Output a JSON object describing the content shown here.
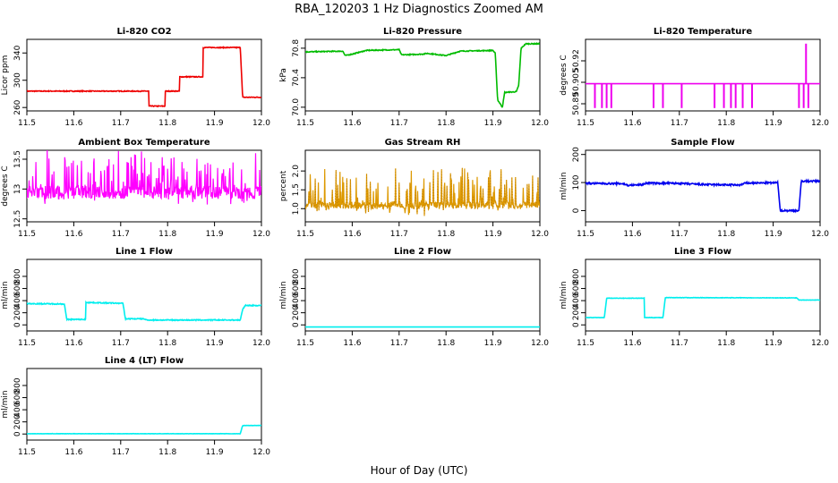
{
  "figure": {
    "title": "RBA_120203  1 Hz Diagnostics Zoomed AM",
    "xlabel": "Hour of Day (UTC)"
  },
  "chart_data": [
    {
      "id": "co2",
      "type": "line",
      "title": "Li-820 CO2",
      "ylabel": "Licor ppm",
      "color": "#ee0000",
      "xlim": [
        11.5,
        12.0
      ],
      "xticks": [
        11.5,
        11.6,
        11.7,
        11.8,
        11.9,
        12.0
      ],
      "xtick_labels": [
        "11.5",
        "11.6",
        "11.7",
        "11.8",
        "11.9",
        "12.0"
      ],
      "ylim": [
        255,
        360
      ],
      "yticks": [
        260,
        300,
        340
      ],
      "ytick_labels": [
        "260",
        "300",
        "340"
      ],
      "noise": 0.6,
      "steps": [
        [
          11.5,
          284
        ],
        [
          11.76,
          284
        ],
        [
          11.76,
          262
        ],
        [
          11.795,
          262
        ],
        [
          11.795,
          284
        ],
        [
          11.825,
          284
        ],
        [
          11.825,
          305
        ],
        [
          11.875,
          305
        ],
        [
          11.875,
          348
        ],
        [
          11.955,
          348
        ],
        [
          11.96,
          275
        ],
        [
          12.0,
          275
        ]
      ]
    },
    {
      "id": "pressure",
      "type": "line",
      "title": "Li-820 Pressure",
      "ylabel": "kPa",
      "color": "#00bb00",
      "xlim": [
        11.5,
        12.0
      ],
      "xticks": [
        11.5,
        11.6,
        11.7,
        11.8,
        11.9,
        12.0
      ],
      "xtick_labels": [
        "11.5",
        "11.6",
        "11.7",
        "11.8",
        "11.9",
        "12.0"
      ],
      "ylim": [
        69.95,
        70.92
      ],
      "yticks": [
        70.0,
        70.4,
        70.8
      ],
      "ytick_labels": [
        "70.0",
        "70.4",
        "70.8"
      ],
      "noise": 0.006,
      "steps": [
        [
          11.5,
          70.75
        ],
        [
          11.58,
          70.76
        ],
        [
          11.585,
          70.7
        ],
        [
          11.6,
          70.72
        ],
        [
          11.63,
          70.77
        ],
        [
          11.7,
          70.78
        ],
        [
          11.705,
          70.71
        ],
        [
          11.75,
          70.72
        ],
        [
          11.76,
          70.73
        ],
        [
          11.8,
          70.7
        ],
        [
          11.83,
          70.76
        ],
        [
          11.9,
          70.77
        ],
        [
          11.905,
          70.73
        ],
        [
          11.91,
          70.1
        ],
        [
          11.92,
          70.0
        ],
        [
          11.925,
          70.2
        ],
        [
          11.95,
          70.21
        ],
        [
          11.955,
          70.3
        ],
        [
          11.96,
          70.8
        ],
        [
          11.97,
          70.86
        ],
        [
          12.0,
          70.86
        ]
      ]
    },
    {
      "id": "licor_temp",
      "type": "line",
      "title": "Li-820 Temperature",
      "ylabel": "degrees C",
      "color": "#ee00ee",
      "xlim": [
        11.5,
        12.0
      ],
      "xticks": [
        11.5,
        11.6,
        11.7,
        11.8,
        11.9,
        12.0
      ],
      "xtick_labels": [
        "11.5",
        "11.6",
        "11.7",
        "11.8",
        "11.9",
        "12.0"
      ],
      "ylim": [
        50.885,
        50.935
      ],
      "yticks": [
        50.89,
        50.905,
        50.92
      ],
      "ytick_labels": [
        "50.89",
        "50.905",
        "50.92"
      ],
      "noise": 0,
      "steps": [
        [
          11.5,
          50.904
        ],
        [
          12.0,
          50.904
        ]
      ],
      "spikes": [
        11.52,
        11.535,
        11.545,
        11.555,
        11.645,
        11.665,
        11.705,
        11.775,
        11.795,
        11.81,
        11.82,
        11.835,
        11.855,
        11.955,
        11.965,
        11.975
      ],
      "spike_low": 50.887,
      "spike_up": [
        11.97
      ],
      "spike_high": 50.932
    },
    {
      "id": "ambient",
      "type": "line",
      "title": "Ambient Box Temperature",
      "ylabel": "degrees C",
      "color": "#ff00ff",
      "xlim": [
        11.5,
        12.0
      ],
      "xticks": [
        11.5,
        11.6,
        11.7,
        11.8,
        11.9,
        12.0
      ],
      "xtick_labels": [
        "11.5",
        "11.6",
        "11.7",
        "11.8",
        "11.9",
        "12.0"
      ],
      "ylim": [
        12.45,
        13.65
      ],
      "yticks": [
        12.5,
        13.0,
        13.5
      ],
      "ytick_labels": [
        "12.5",
        "13",
        "13.5"
      ],
      "noise_type": "spiky",
      "base": 12.9,
      "spread": 0.22,
      "spike_amp": 0.65
    },
    {
      "id": "rh",
      "type": "line",
      "title": "Gas Stream RH",
      "ylabel": "percent",
      "color": "#dd9900",
      "xlim": [
        11.5,
        12.0
      ],
      "xticks": [
        11.5,
        11.6,
        11.7,
        11.8,
        11.9,
        12.0
      ],
      "xtick_labels": [
        "11.5",
        "11.6",
        "11.7",
        "11.8",
        "11.9",
        "12.0"
      ],
      "ylim": [
        0.65,
        2.55
      ],
      "yticks": [
        1.0,
        1.5,
        2.0
      ],
      "ytick_labels": [
        "1.0",
        "1.5",
        "2.0"
      ],
      "noise_type": "spiky",
      "base": 1.05,
      "spread": 0.2,
      "spike_amp": 0.95
    },
    {
      "id": "sample_flow",
      "type": "line",
      "title": "Sample Flow",
      "ylabel": "ml/min",
      "color": "#0000ee",
      "xlim": [
        11.5,
        12.0
      ],
      "xticks": [
        11.5,
        11.6,
        11.7,
        11.8,
        11.9,
        12.0
      ],
      "xtick_labels": [
        "11.5",
        "11.6",
        "11.7",
        "11.8",
        "11.9",
        "12.0"
      ],
      "ylim": [
        -40,
        215
      ],
      "yticks": [
        0,
        100,
        200
      ],
      "ytick_labels": [
        "0",
        "100",
        "200"
      ],
      "noise": 3,
      "steps": [
        [
          11.5,
          97
        ],
        [
          11.58,
          96
        ],
        [
          11.59,
          90
        ],
        [
          11.62,
          92
        ],
        [
          11.63,
          98
        ],
        [
          11.7,
          97
        ],
        [
          11.75,
          93
        ],
        [
          11.83,
          91
        ],
        [
          11.84,
          98
        ],
        [
          11.91,
          99
        ],
        [
          11.915,
          0
        ],
        [
          11.955,
          0
        ],
        [
          11.96,
          105
        ],
        [
          12.0,
          105
        ]
      ]
    },
    {
      "id": "line1",
      "type": "line",
      "title": "Line 1 Flow",
      "ylabel": "ml/min",
      "color": "#00eeee",
      "xlim": [
        11.5,
        12.0
      ],
      "xticks": [
        11.5,
        11.6,
        11.7,
        11.8,
        11.9,
        12.0
      ],
      "xtick_labels": [
        "11.5",
        "11.6",
        "11.7",
        "11.8",
        "11.9",
        "12.0"
      ],
      "ylim": [
        -100,
        1080
      ],
      "yticks": [
        0,
        200,
        400,
        600,
        800
      ],
      "ytick_labels": [
        "0",
        "200",
        "400",
        "600",
        "800"
      ],
      "noise": 8,
      "steps": [
        [
          11.5,
          350
        ],
        [
          11.58,
          345
        ],
        [
          11.585,
          90
        ],
        [
          11.625,
          90
        ],
        [
          11.625,
          370
        ],
        [
          11.705,
          355
        ],
        [
          11.71,
          100
        ],
        [
          11.75,
          100
        ],
        [
          11.755,
          80
        ],
        [
          11.955,
          80
        ],
        [
          11.96,
          250
        ],
        [
          11.965,
          320
        ],
        [
          12.0,
          320
        ]
      ]
    },
    {
      "id": "line2",
      "type": "line",
      "title": "Line 2 Flow",
      "ylabel": "ml/min",
      "color": "#00eeee",
      "xlim": [
        11.5,
        12.0
      ],
      "xticks": [
        11.5,
        11.6,
        11.7,
        11.8,
        11.9,
        12.0
      ],
      "xtick_labels": [
        "11.5",
        "11.6",
        "11.7",
        "11.8",
        "11.9",
        "12.0"
      ],
      "ylim": [
        -100,
        1080
      ],
      "yticks": [
        0,
        200,
        400,
        600,
        800
      ],
      "ytick_labels": [
        "0",
        "200",
        "400",
        "600",
        "800"
      ],
      "noise": 0,
      "steps": [
        [
          11.5,
          -35
        ],
        [
          12.0,
          -35
        ]
      ]
    },
    {
      "id": "line3",
      "type": "line",
      "title": "Line 3 Flow",
      "ylabel": "ml/min",
      "color": "#00eeee",
      "xlim": [
        11.5,
        12.0
      ],
      "xticks": [
        11.5,
        11.6,
        11.7,
        11.8,
        11.9,
        12.0
      ],
      "xtick_labels": [
        "11.5",
        "11.6",
        "11.7",
        "11.8",
        "11.9",
        "12.0"
      ],
      "ylim": [
        -100,
        1080
      ],
      "yticks": [
        0,
        200,
        400,
        600,
        800
      ],
      "ytick_labels": [
        "0",
        "200",
        "400",
        "600",
        "800"
      ],
      "noise": 3,
      "steps": [
        [
          11.5,
          120
        ],
        [
          11.54,
          120
        ],
        [
          11.545,
          440
        ],
        [
          11.625,
          440
        ],
        [
          11.625,
          120
        ],
        [
          11.665,
          120
        ],
        [
          11.67,
          450
        ],
        [
          11.95,
          445
        ],
        [
          11.955,
          410
        ],
        [
          12.0,
          410
        ]
      ]
    },
    {
      "id": "line4",
      "type": "line",
      "title": "Line 4 (LT) Flow",
      "ylabel": "ml/min",
      "color": "#00eeee",
      "xlim": [
        11.5,
        12.0
      ],
      "xticks": [
        11.5,
        11.6,
        11.7,
        11.8,
        11.9,
        12.0
      ],
      "xtick_labels": [
        "11.5",
        "11.6",
        "11.7",
        "11.8",
        "11.9",
        "12.0"
      ],
      "ylim": [
        -100,
        1080
      ],
      "yticks": [
        0,
        200,
        400,
        600,
        800
      ],
      "ytick_labels": [
        "0",
        "200",
        "400",
        "600",
        "800"
      ],
      "noise": 2,
      "steps": [
        [
          11.5,
          5
        ],
        [
          11.955,
          5
        ],
        [
          11.96,
          140
        ],
        [
          12.0,
          140
        ]
      ]
    }
  ]
}
